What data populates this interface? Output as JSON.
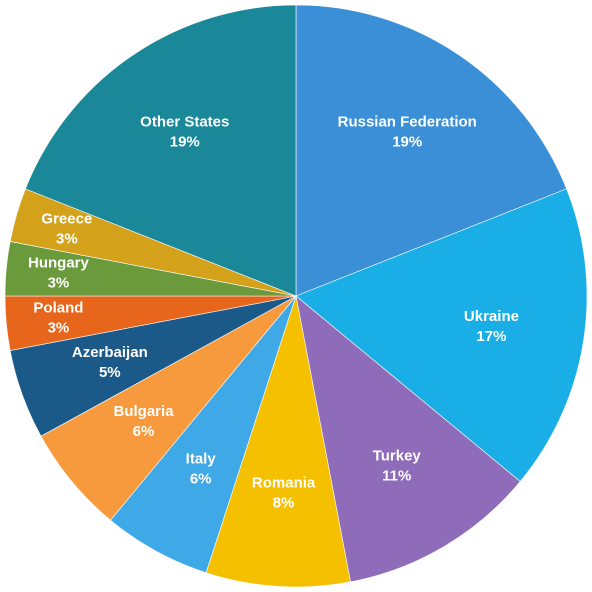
{
  "chart_data": {
    "type": "pie",
    "categories": [
      "Russian Federation",
      "Ukraine",
      "Turkey",
      "Romania",
      "Italy",
      "Bulgaria",
      "Azerbaijan",
      "Poland",
      "Hungary",
      "Greece",
      "Other States"
    ],
    "values": [
      19,
      17,
      11,
      8,
      6,
      6,
      5,
      3,
      3,
      3,
      19
    ],
    "value_labels": [
      "19%",
      "17%",
      "11%",
      "8%",
      "6%",
      "6%",
      "5%",
      "3%",
      "3%",
      "3%",
      "19%"
    ],
    "colors": [
      "#3a8fd6",
      "#1aaee6",
      "#8e6cba",
      "#f5c000",
      "#3fa8e6",
      "#f79a3e",
      "#1b5a88",
      "#e8661c",
      "#6a9a3c",
      "#d4a21a",
      "#1a8898"
    ]
  }
}
